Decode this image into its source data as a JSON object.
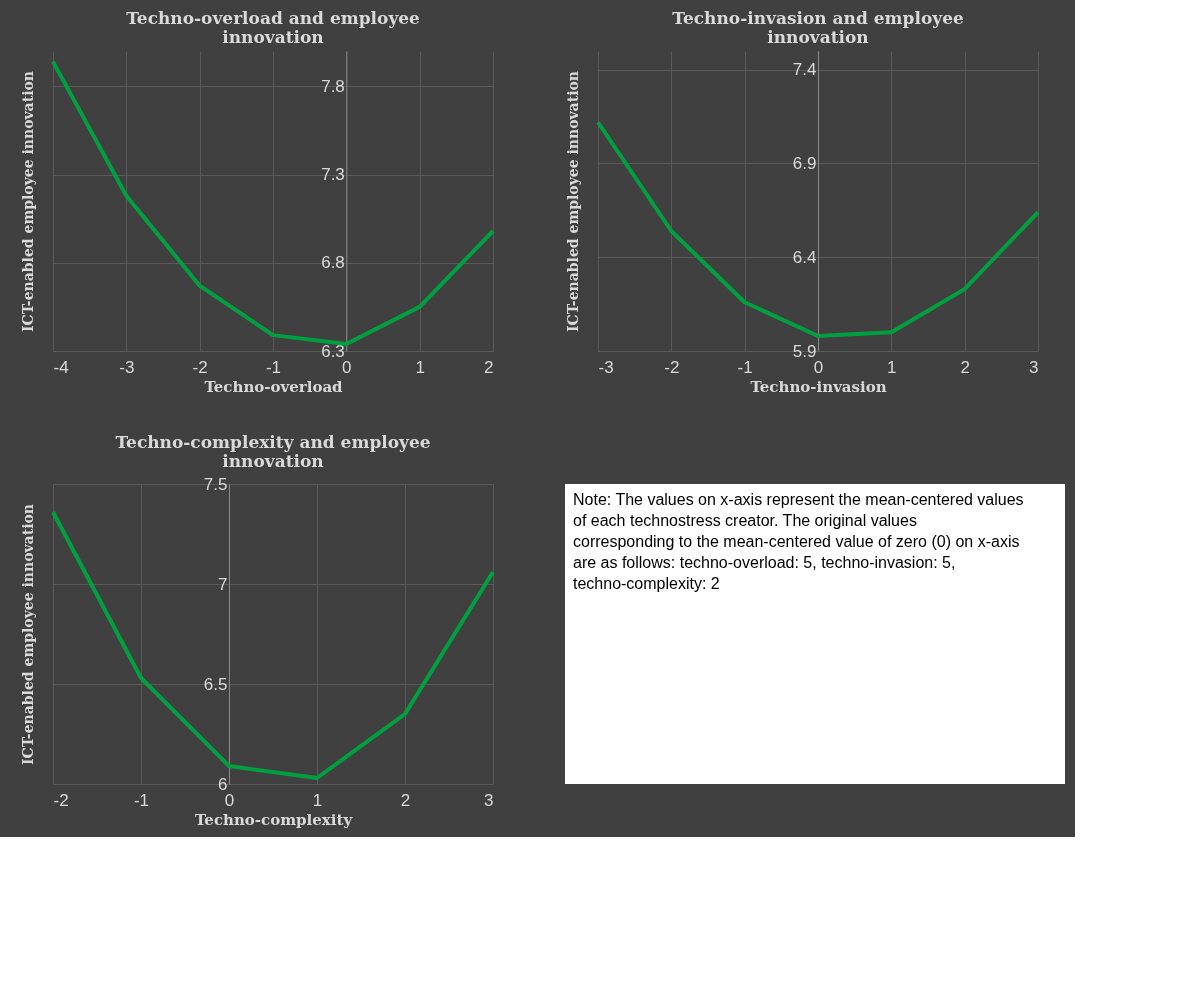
{
  "chart_data": [
    {
      "type": "line",
      "title": "Techno-overload and employee innovation",
      "xlabel": "Techno-overload",
      "ylabel": "ICT-enabled employee innovation",
      "x": [
        -4,
        -3,
        -2,
        -1,
        0,
        1,
        2
      ],
      "series": [
        {
          "color": "#00a040",
          "values": [
            7.94,
            7.18,
            6.67,
            6.39,
            6.34,
            6.55,
            6.98
          ]
        }
      ],
      "xlim": [
        -4,
        2
      ],
      "xticks": [
        -4,
        -3,
        -2,
        -1,
        0,
        1,
        2
      ],
      "ylim": [
        6.3,
        8.0
      ],
      "yticks": [
        6.3,
        6.8,
        7.3,
        7.8
      ],
      "grid": true,
      "legend": false,
      "marker": "none",
      "line_style": "solid"
    },
    {
      "type": "line",
      "title": "Techno-invasion and employee innovation",
      "xlabel": "Techno-invasion",
      "ylabel": "ICT-enabled employee innovation",
      "x": [
        -3,
        -2,
        -1,
        0,
        1,
        2,
        3
      ],
      "series": [
        {
          "color": "#00a040",
          "values": [
            7.12,
            6.54,
            6.16,
            5.98,
            6.0,
            6.23,
            6.64
          ]
        }
      ],
      "xlim": [
        -3,
        3
      ],
      "xticks": [
        -3,
        -2,
        -1,
        0,
        1,
        2,
        3
      ],
      "ylim": [
        5.9,
        7.5
      ],
      "yticks": [
        5.9,
        6.4,
        6.9,
        7.4
      ],
      "grid": true,
      "legend": false,
      "marker": "none",
      "line_style": "solid"
    },
    {
      "type": "line",
      "title": "Techno-complexity and employee innovation",
      "xlabel": "Techno-complexity",
      "ylabel": "ICT-enabled employee innovation",
      "x": [
        -2,
        -1,
        0,
        1,
        2,
        3
      ],
      "series": [
        {
          "color": "#00a040",
          "values": [
            7.36,
            6.53,
            6.09,
            6.03,
            6.35,
            7.06
          ]
        }
      ],
      "xlim": [
        -2,
        3
      ],
      "xticks": [
        -2,
        -1,
        0,
        1,
        2,
        3
      ],
      "ylim": [
        6,
        7.5
      ],
      "yticks": [
        6,
        6.5,
        7,
        7.5
      ],
      "grid": true,
      "legend": false,
      "marker": "none",
      "line_style": "solid"
    },
    {
      "type": "other",
      "annotations": [
        "Note: The values on x-axis represent the mean-centered values of each technostress creator. The original values corresponding to the mean-centered value of zero (0) on x-axis are as follows: techno-overload: 5, techno-invasion: 5, techno-complexity: 2"
      ]
    }
  ]
}
